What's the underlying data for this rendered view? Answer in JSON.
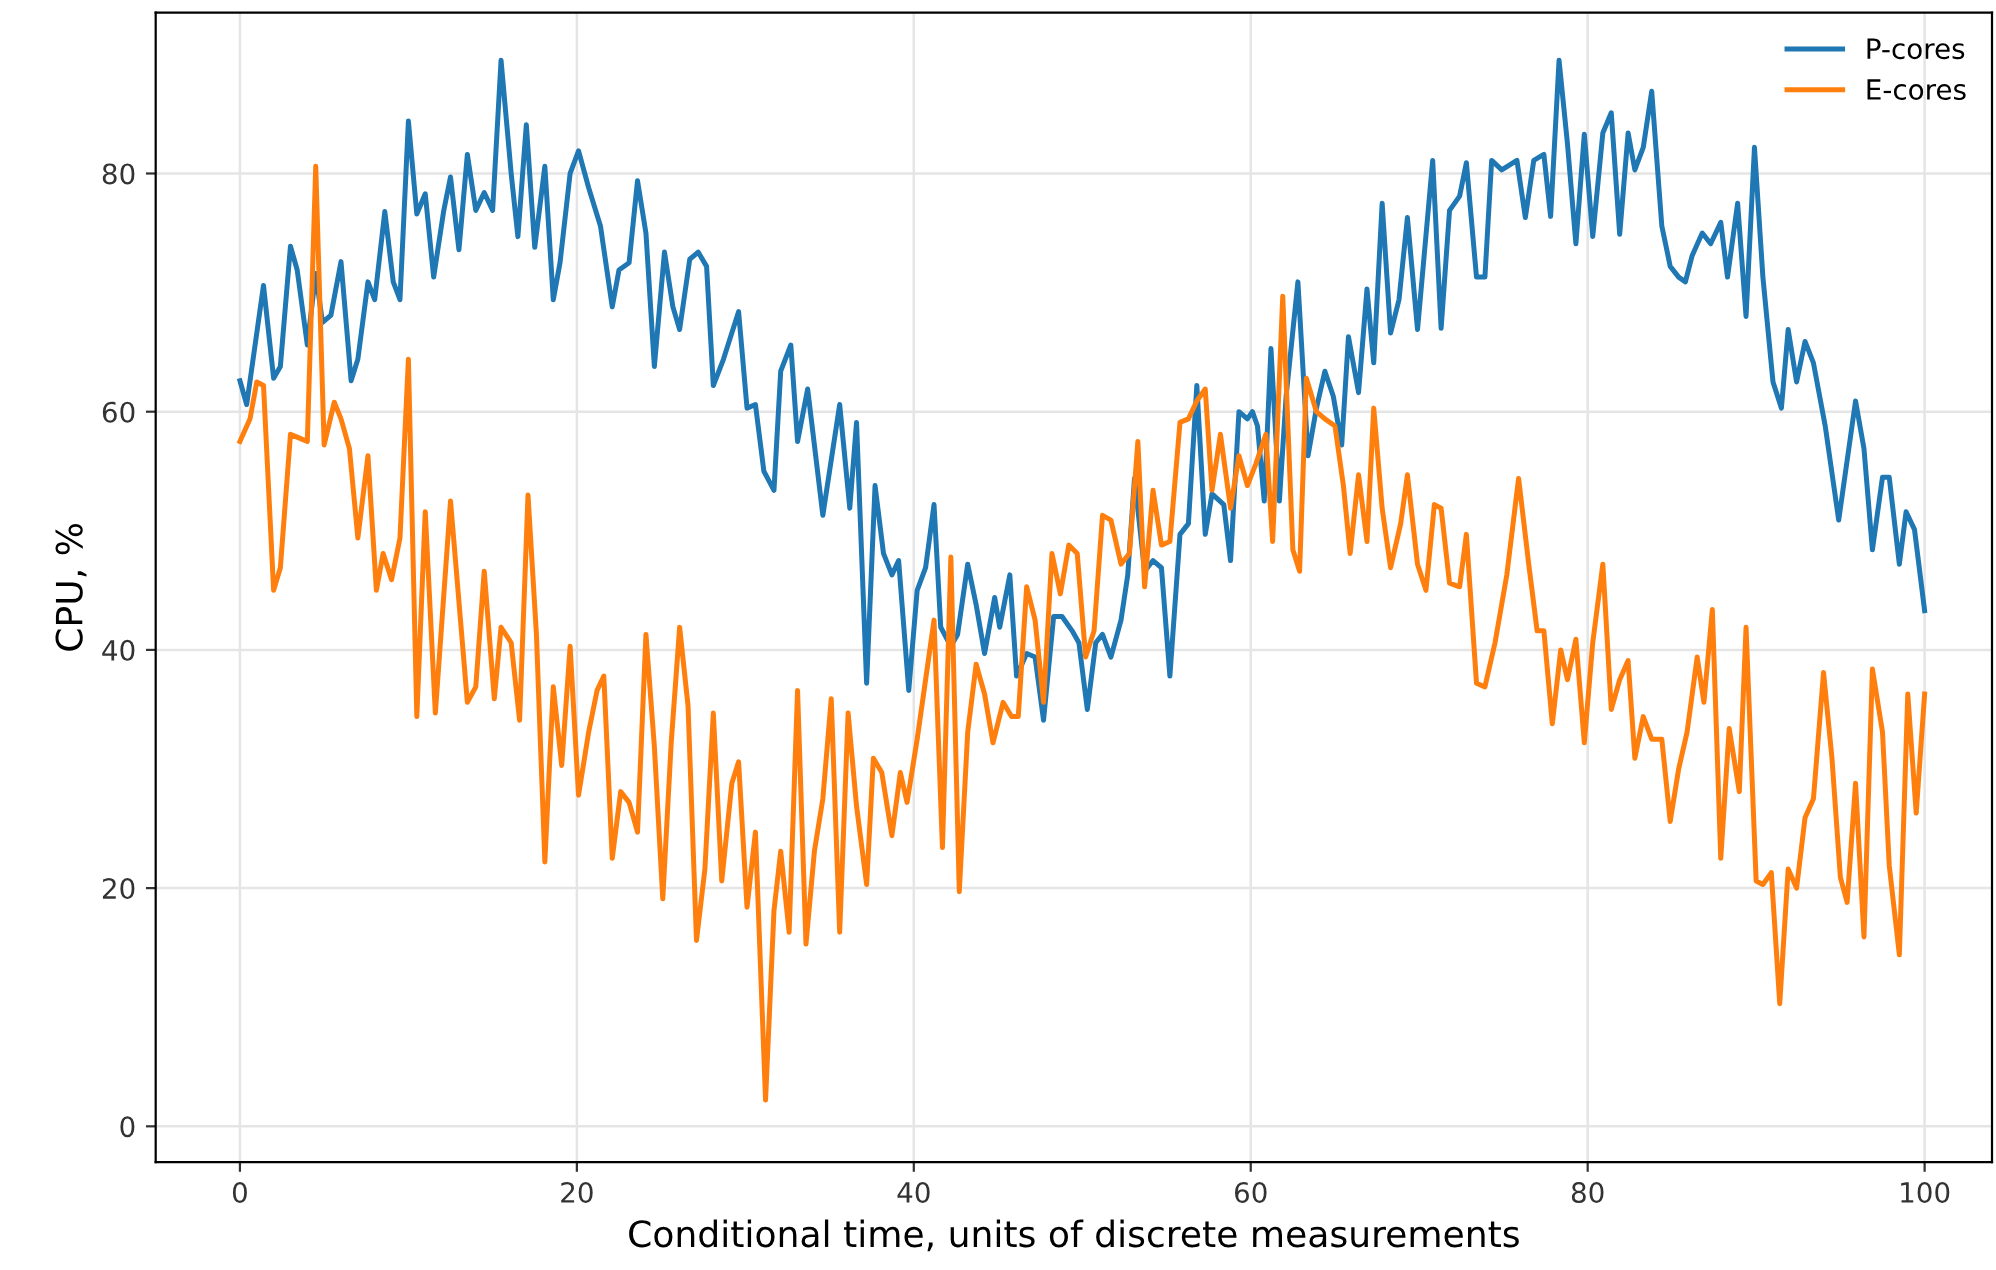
{
  "chart_data": {
    "type": "line",
    "xlabel": "Conditional time, units of discrete measurements",
    "ylabel": "CPU, %",
    "xlim": [
      -5,
      104
    ],
    "ylim": [
      -3,
      93.5
    ],
    "xticks": [
      0,
      20,
      40,
      60,
      80,
      100
    ],
    "yticks": [
      0,
      20,
      40,
      60,
      80
    ],
    "grid": true,
    "legend": "top right",
    "line_style": "solid",
    "marker": "none",
    "series": [
      {
        "name": "P-cores",
        "color": "#1f77b4",
        "x": [
          0,
          0.4,
          1.4,
          2.0,
          2.4,
          3.0,
          3.4,
          4.0,
          4.5,
          4.9,
          5.4,
          6.0,
          6.6,
          7.0,
          7.6,
          8.0,
          8.6,
          9.1,
          9.5,
          10.0,
          10.5,
          11.0,
          11.5,
          12.1,
          12.5,
          13.0,
          13.5,
          14.0,
          14.5,
          15.0,
          15.5,
          16.1,
          16.5,
          17.0,
          17.5,
          18.1,
          18.6,
          19.0,
          19.6,
          20.1,
          20.7,
          21.4,
          22.1,
          22.5,
          23.1,
          23.6,
          24.1,
          24.6,
          25.2,
          25.7,
          26.1,
          26.7,
          27.2,
          27.7,
          28.1,
          28.7,
          29.6,
          30.1,
          30.6,
          31.1,
          31.7,
          32.1,
          32.7,
          33.1,
          33.7,
          34.6,
          35.6,
          36.2,
          36.6,
          37.2,
          37.7,
          38.2,
          38.7,
          39.1,
          39.7,
          40.2,
          40.7,
          41.2,
          41.6,
          42.2,
          42.6,
          43.2,
          43.7,
          44.2,
          44.8,
          45.1,
          45.7,
          46.1,
          46.7,
          47.2,
          47.7,
          48.3,
          48.8,
          49.4,
          49.8,
          50.3,
          50.8,
          51.2,
          51.7,
          52.3,
          52.7,
          53.1,
          53.7,
          54.2,
          54.7,
          55.2,
          55.8,
          56.3,
          56.8,
          57.3,
          57.7,
          58.4,
          58.8,
          59.3,
          59.8,
          60.1,
          60.4,
          60.8,
          61.2,
          61.7,
          62.1,
          62.8,
          63.4,
          63.9,
          64.4,
          64.9,
          65.4,
          65.8,
          66.4,
          66.9,
          67.3,
          67.8,
          68.3,
          68.8,
          69.3,
          69.9,
          70.8,
          71.3,
          71.8,
          72.4,
          72.8,
          73.4,
          73.9,
          74.3,
          74.9,
          75.8,
          76.3,
          76.8,
          77.4,
          77.8,
          78.3,
          78.8,
          79.3,
          79.8,
          80.3,
          80.9,
          81.4,
          81.9,
          82.4,
          82.8,
          83.3,
          83.8,
          84.4,
          84.9,
          85.4,
          85.8,
          86.2,
          86.8,
          87.3,
          87.9,
          88.3,
          88.9,
          89.4,
          89.9,
          90.4,
          91.0,
          91.5,
          91.9,
          92.4,
          92.9,
          93.4,
          94.1,
          94.9,
          95.9,
          96.4,
          96.9,
          97.5,
          97.9,
          98.5,
          98.9,
          99.4,
          100.0
        ],
        "values": [
          62.6,
          60.6,
          70.6,
          62.8,
          63.8,
          73.9,
          71.9,
          65.6,
          71.6,
          67.5,
          68.1,
          72.6,
          62.6,
          64.4,
          70.9,
          69.4,
          76.8,
          70.9,
          69.4,
          84.4,
          76.6,
          78.3,
          71.3,
          76.9,
          79.7,
          73.6,
          81.6,
          76.9,
          78.4,
          76.9,
          89.5,
          80.0,
          74.7,
          84.1,
          73.8,
          80.6,
          69.4,
          72.5,
          80.0,
          81.9,
          78.8,
          75.6,
          68.8,
          71.9,
          72.5,
          79.4,
          75.0,
          63.8,
          73.4,
          68.8,
          66.9,
          72.8,
          73.4,
          72.2,
          62.2,
          64.4,
          68.4,
          60.3,
          60.6,
          55.0,
          53.4,
          63.4,
          65.6,
          57.5,
          61.9,
          51.3,
          60.6,
          51.9,
          59.1,
          37.2,
          53.8,
          48.1,
          46.3,
          47.5,
          36.6,
          45.0,
          46.9,
          52.2,
          41.9,
          40.3,
          41.3,
          47.2,
          43.8,
          39.7,
          44.4,
          41.9,
          46.3,
          37.8,
          39.7,
          39.4,
          34.1,
          42.8,
          42.8,
          41.6,
          40.6,
          35.0,
          40.6,
          41.3,
          39.4,
          42.5,
          46.3,
          54.4,
          46.6,
          47.5,
          46.9,
          37.8,
          49.7,
          50.6,
          62.2,
          49.7,
          53.1,
          52.2,
          47.5,
          60.0,
          59.4,
          60.0,
          58.8,
          52.5,
          65.3,
          52.5,
          61.3,
          70.9,
          56.3,
          60.3,
          63.4,
          61.3,
          57.2,
          66.3,
          61.6,
          70.3,
          64.1,
          77.5,
          66.6,
          69.4,
          76.3,
          66.9,
          81.1,
          67.0,
          76.9,
          78.1,
          80.9,
          71.3,
          71.3,
          81.1,
          80.3,
          81.1,
          76.3,
          81.1,
          81.6,
          76.4,
          89.5,
          82.5,
          74.1,
          83.3,
          74.7,
          83.4,
          85.1,
          74.9,
          83.4,
          80.3,
          82.2,
          86.9,
          75.6,
          72.2,
          71.3,
          70.9,
          73.1,
          75.0,
          74.1,
          75.9,
          71.3,
          77.5,
          68.0,
          82.2,
          71.3,
          62.5,
          60.3,
          66.9,
          62.5,
          65.9,
          64.1,
          58.8,
          50.9,
          60.9,
          56.9,
          48.4,
          54.5,
          54.5,
          47.2,
          51.6,
          50.1,
          43.3
        ]
      },
      {
        "name": "E-cores",
        "color": "#ff7f0e",
        "x": [
          0,
          0.6,
          1.0,
          1.4,
          2.0,
          2.4,
          3.0,
          3.5,
          4.0,
          4.5,
          5.0,
          5.6,
          6.0,
          6.5,
          7.0,
          7.6,
          8.1,
          8.5,
          9.0,
          9.5,
          10.0,
          10.5,
          11.0,
          11.6,
          12.5,
          13.5,
          14.0,
          14.5,
          15.1,
          15.5,
          16.1,
          16.6,
          17.1,
          17.6,
          18.1,
          18.6,
          19.1,
          19.6,
          20.1,
          20.7,
          21.2,
          21.6,
          22.1,
          22.6,
          23.1,
          23.6,
          24.1,
          24.6,
          25.1,
          25.6,
          26.1,
          26.6,
          27.1,
          27.6,
          28.1,
          28.6,
          29.2,
          29.6,
          30.1,
          30.6,
          31.2,
          31.7,
          32.1,
          32.6,
          33.1,
          33.6,
          34.1,
          34.6,
          35.1,
          35.6,
          36.1,
          36.6,
          37.2,
          37.6,
          38.1,
          38.7,
          39.2,
          39.6,
          40.2,
          41.2,
          41.7,
          42.2,
          42.7,
          43.2,
          43.7,
          44.2,
          44.7,
          45.3,
          45.8,
          46.2,
          46.7,
          47.2,
          47.7,
          48.2,
          48.7,
          49.2,
          49.7,
          50.2,
          50.7,
          51.2,
          51.7,
          52.3,
          52.8,
          53.3,
          53.7,
          54.2,
          54.7,
          55.2,
          55.8,
          56.3,
          56.8,
          57.3,
          57.7,
          58.2,
          58.8,
          59.3,
          59.8,
          60.3,
          60.9,
          61.3,
          61.9,
          62.5,
          62.9,
          63.3,
          63.9,
          64.4,
          65.0,
          65.5,
          65.9,
          66.4,
          66.9,
          67.3,
          67.8,
          68.3,
          68.9,
          69.3,
          69.9,
          70.4,
          70.9,
          71.3,
          71.8,
          72.4,
          72.8,
          73.4,
          73.9,
          74.5,
          75.2,
          75.9,
          76.5,
          77.0,
          77.4,
          77.9,
          78.4,
          78.8,
          79.3,
          79.8,
          80.3,
          80.9,
          81.4,
          81.9,
          82.4,
          82.8,
          83.3,
          83.8,
          84.4,
          84.9,
          85.4,
          85.9,
          86.5,
          86.9,
          87.4,
          87.9,
          88.4,
          89.0,
          89.4,
          90.0,
          90.4,
          90.9,
          91.4,
          91.9,
          92.4,
          92.9,
          93.4,
          94.0,
          94.5,
          95.0,
          95.4,
          95.9,
          96.4,
          96.9,
          97.5,
          97.9,
          98.5,
          99.0,
          99.5,
          100.0
        ],
        "values": [
          57.5,
          59.4,
          62.5,
          62.2,
          45.0,
          46.9,
          58.1,
          57.8,
          57.5,
          80.6,
          57.2,
          60.8,
          59.4,
          56.9,
          49.4,
          56.3,
          45.0,
          48.1,
          45.9,
          49.4,
          64.4,
          34.4,
          51.6,
          34.7,
          52.5,
          35.6,
          36.9,
          46.6,
          35.9,
          41.9,
          40.6,
          34.1,
          53.0,
          41.3,
          22.2,
          36.9,
          30.3,
          40.3,
          27.8,
          33.1,
          36.6,
          37.8,
          22.5,
          28.1,
          27.2,
          24.7,
          41.3,
          31.9,
          19.1,
          32.2,
          41.9,
          35.3,
          15.6,
          21.6,
          34.7,
          20.6,
          28.8,
          30.6,
          18.4,
          24.7,
          2.2,
          18.1,
          23.1,
          16.3,
          36.6,
          15.3,
          23.1,
          27.5,
          35.9,
          16.3,
          34.7,
          26.9,
          20.3,
          30.9,
          29.7,
          24.4,
          29.7,
          27.2,
          32.5,
          42.5,
          23.4,
          47.8,
          19.7,
          33.1,
          38.8,
          36.3,
          32.2,
          35.6,
          34.4,
          34.4,
          45.3,
          42.5,
          35.6,
          48.1,
          44.7,
          48.8,
          48.1,
          39.4,
          41.6,
          51.3,
          50.9,
          47.2,
          48.1,
          57.5,
          45.3,
          53.4,
          48.8,
          49.1,
          59.1,
          59.4,
          60.9,
          61.9,
          53.4,
          58.1,
          51.9,
          56.3,
          53.8,
          55.6,
          58.1,
          49.1,
          69.7,
          48.4,
          46.6,
          62.8,
          60.0,
          59.4,
          58.8,
          53.8,
          48.1,
          54.7,
          49.1,
          60.3,
          51.9,
          46.9,
          50.6,
          54.7,
          47.2,
          45.0,
          52.2,
          51.9,
          45.6,
          45.3,
          49.7,
          37.2,
          36.9,
          40.6,
          46.3,
          54.4,
          47.2,
          41.6,
          41.6,
          33.8,
          40.0,
          37.5,
          40.9,
          32.2,
          40.6,
          47.2,
          35.0,
          37.5,
          39.1,
          30.9,
          34.4,
          32.5,
          32.5,
          25.6,
          30.0,
          33.1,
          39.4,
          35.6,
          43.4,
          22.5,
          33.4,
          28.1,
          41.9,
          20.6,
          20.3,
          21.3,
          10.3,
          21.6,
          20.0,
          25.9,
          27.5,
          38.1,
          30.9,
          20.9,
          18.8,
          28.8,
          15.9,
          38.4,
          33.1,
          21.9,
          14.4,
          36.3,
          26.3,
          36.3
        ]
      }
    ]
  }
}
